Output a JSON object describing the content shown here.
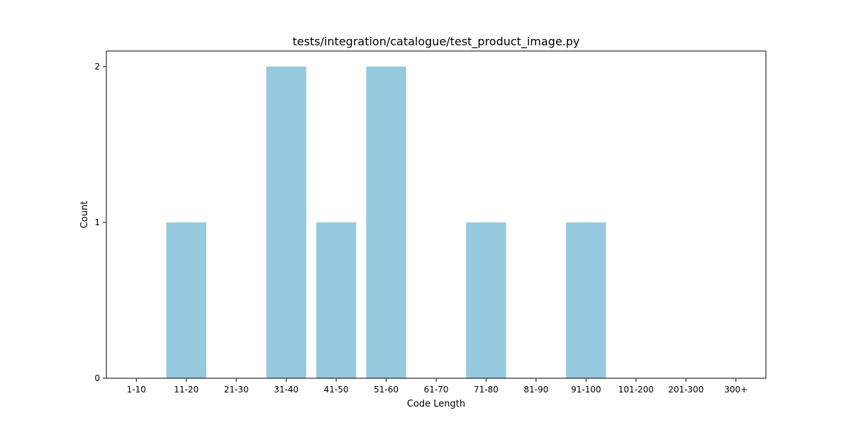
{
  "chart_data": {
    "type": "bar",
    "title": "tests/integration/catalogue/test_product_image.py",
    "xlabel": "Code Length",
    "ylabel": "Count",
    "categories": [
      "1-10",
      "11-20",
      "21-30",
      "31-40",
      "41-50",
      "51-60",
      "61-70",
      "71-80",
      "81-90",
      "91-100",
      "101-200",
      "201-300",
      "300+"
    ],
    "values": [
      0,
      1,
      0,
      2,
      1,
      2,
      0,
      1,
      0,
      1,
      0,
      0,
      0
    ],
    "ylim": [
      0,
      2.1
    ],
    "yticks": [
      0,
      1,
      2
    ],
    "grid": false,
    "bar_color": "#96c9dd"
  }
}
